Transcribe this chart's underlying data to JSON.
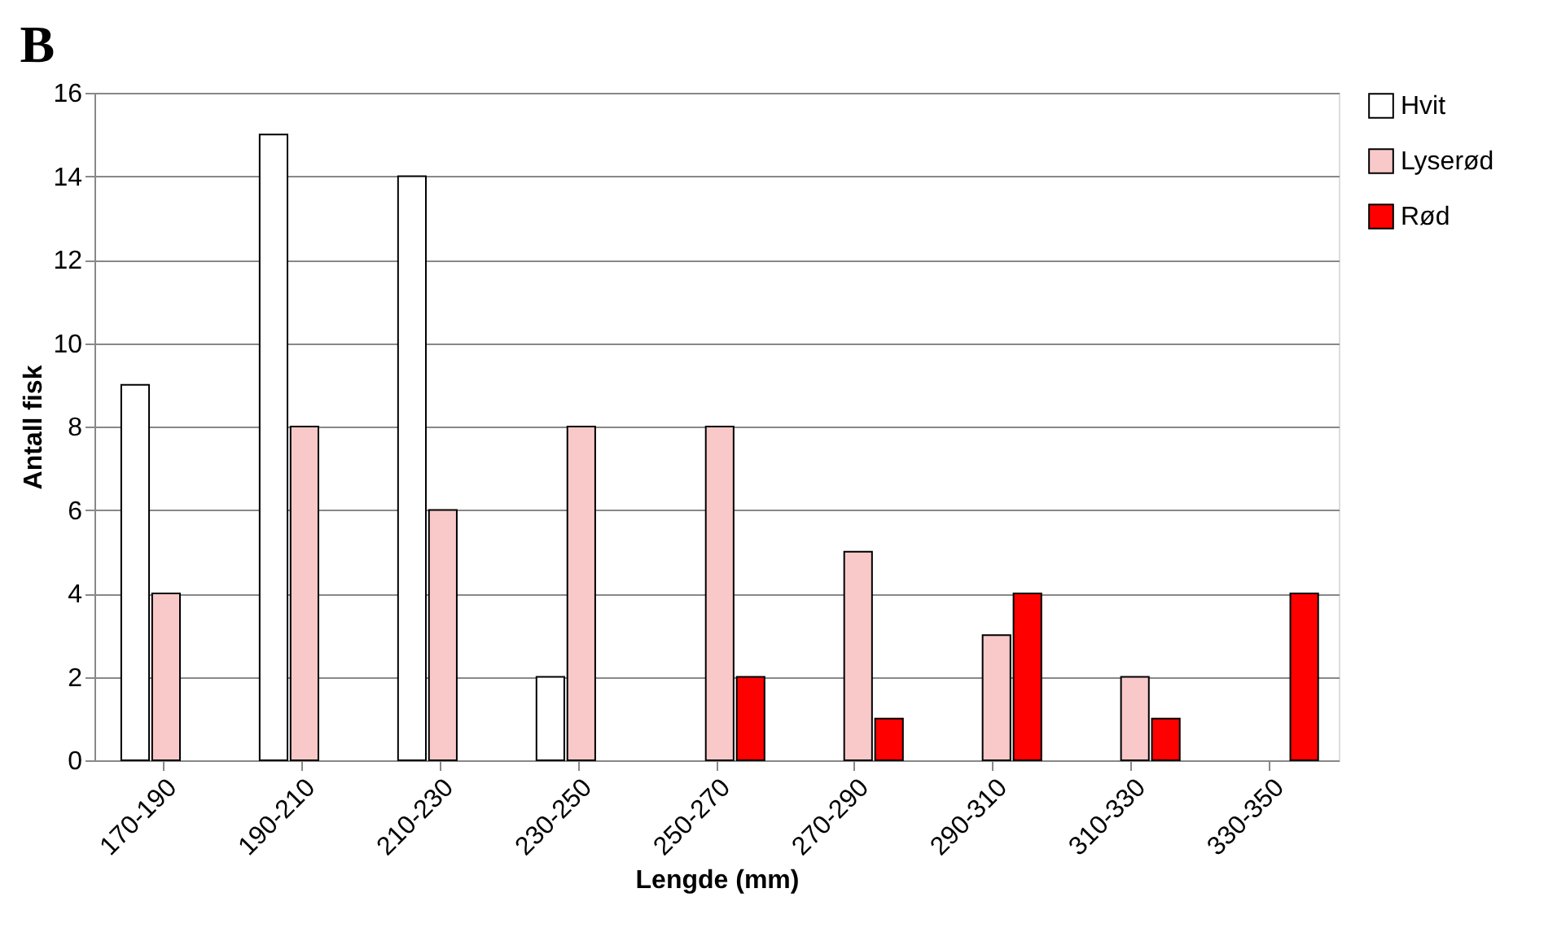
{
  "chart_data": {
    "type": "bar",
    "title": "B",
    "xlabel": "Lengde (mm)",
    "ylabel": "Antall fisk",
    "categories": [
      "170-190",
      "190-210",
      "210-230",
      "230-250",
      "250-270",
      "270-290",
      "290-310",
      "310-330",
      "330-350"
    ],
    "series": [
      {
        "name": "Hvit",
        "color": "#ffffff",
        "values": [
          9,
          15,
          14,
          2,
          null,
          null,
          null,
          null,
          null
        ]
      },
      {
        "name": "Lyserød",
        "color": "#f9c9c9",
        "values": [
          4,
          8,
          6,
          8,
          8,
          5,
          3,
          2,
          null
        ]
      },
      {
        "name": "Rød",
        "color": "#ff0000",
        "values": [
          null,
          null,
          null,
          null,
          2,
          1,
          4,
          1,
          4
        ]
      }
    ],
    "ylim": [
      0,
      16
    ],
    "yticks": [
      0,
      2,
      4,
      6,
      8,
      10,
      12,
      14,
      16
    ],
    "grid": "y",
    "legend": "top right"
  }
}
